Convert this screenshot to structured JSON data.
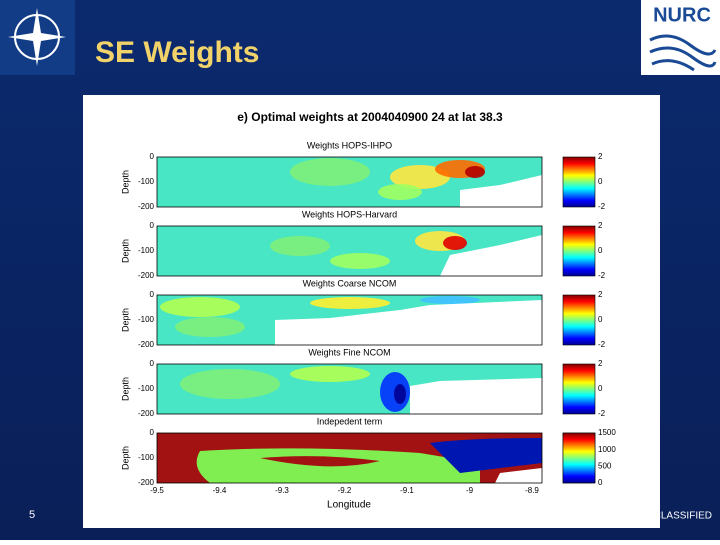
{
  "header": {
    "title": "SE Weights",
    "logo": "NURC"
  },
  "figure": {
    "title": "e) Optimal weights at 2004040900 24 at lat 38.3",
    "panels": [
      {
        "title": "Weights HOPS-IHPO",
        "ylabel": "Depth",
        "yticks": [
          0,
          -100,
          -200
        ],
        "colorbar_ticks": [
          2,
          0,
          -2
        ]
      },
      {
        "title": "Weights HOPS-Harvard",
        "ylabel": "Depth",
        "yticks": [
          0,
          -100,
          -200
        ],
        "colorbar_ticks": [
          2,
          0,
          -2
        ]
      },
      {
        "title": "Weights Coarse NCOM",
        "ylabel": "Depth",
        "yticks": [
          0,
          -100,
          -200
        ],
        "colorbar_ticks": [
          2,
          0,
          -2
        ]
      },
      {
        "title": "Weights Fine NCOM",
        "ylabel": "Depth",
        "yticks": [
          0,
          -100,
          -200
        ],
        "colorbar_ticks": [
          2,
          0,
          -2
        ]
      },
      {
        "title": "Indepedent term",
        "ylabel": "Depth",
        "yticks": [
          0,
          -100,
          -200
        ],
        "colorbar_ticks": [
          1500,
          1000,
          500,
          0
        ]
      }
    ],
    "xticks": [
      -9.5,
      -9.4,
      -9.3,
      -9.2,
      -9.1,
      -9,
      -8.9
    ],
    "xlabel": "Longitude"
  },
  "footer": {
    "page": 5,
    "classification": "CLASSIFIED"
  }
}
